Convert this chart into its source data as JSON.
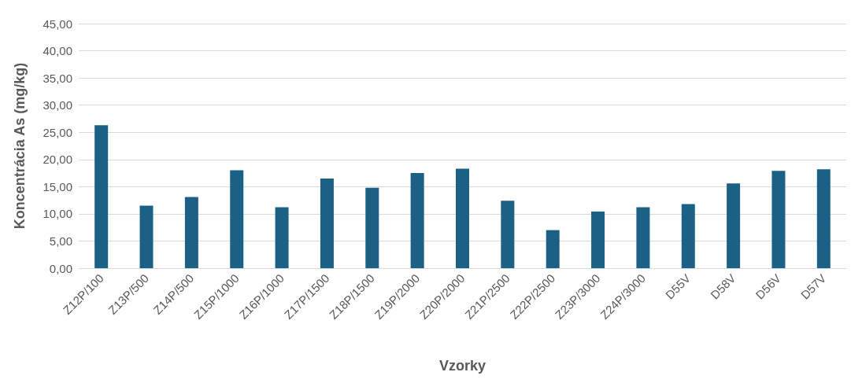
{
  "chart_data": {
    "type": "bar",
    "xlabel": "Vzorky",
    "ylabel": "Koncentrácia As (mg/kg)",
    "categories": [
      "Z12P/100",
      "Z13P/500",
      "Z14P/500",
      "Z15P/1000",
      "Z16P/1000",
      "Z17P/1500",
      "Z18P/1500",
      "Z19P/2000",
      "Z20P/2000",
      "Z21P/2500",
      "Z22P/2500",
      "Z23P/3000",
      "Z24P/3000",
      "D55V",
      "D58V",
      "D56V",
      "D57V"
    ],
    "values": [
      26.3,
      11.5,
      13.1,
      18.0,
      11.2,
      16.5,
      14.8,
      17.5,
      18.3,
      12.4,
      7.0,
      10.4,
      11.2,
      11.8,
      15.6,
      17.9,
      18.2
    ],
    "color": "#1b6185",
    "ylim": [
      0,
      45
    ],
    "yticks": [
      {
        "value": 0,
        "label": "0,00"
      },
      {
        "value": 5,
        "label": "5,00"
      },
      {
        "value": 10,
        "label": "10,00"
      },
      {
        "value": 15,
        "label": "15,00"
      },
      {
        "value": 20,
        "label": "20,00"
      },
      {
        "value": 25,
        "label": "25,00"
      },
      {
        "value": 30,
        "label": "30,00"
      },
      {
        "value": 35,
        "label": "35,00"
      },
      {
        "value": 40,
        "label": "40,00"
      },
      {
        "value": 45,
        "label": "45,00"
      }
    ],
    "grid": "y"
  }
}
